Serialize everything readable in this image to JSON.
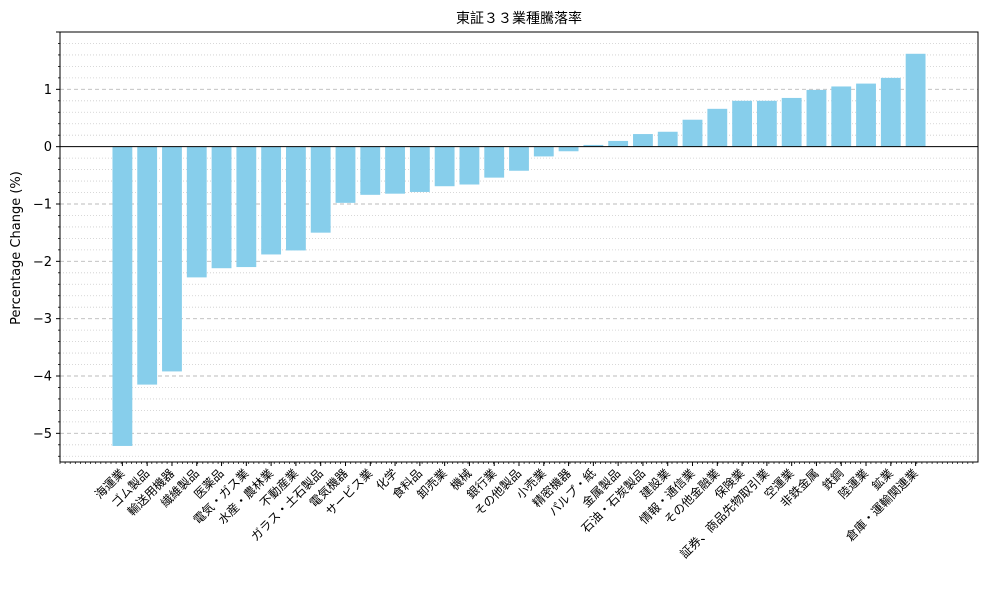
{
  "chart_data": {
    "type": "bar",
    "title": "東証３３業種騰落率",
    "xlabel": "",
    "ylabel": "Percentage Change (%)",
    "ylim": [
      -5.5,
      2.0
    ],
    "yticks": [
      "−5",
      "−4",
      "−3",
      "−2",
      "−1",
      "0",
      "1"
    ],
    "grid": "y-dashed-major-dotted-minor",
    "bar_color": "#87CEEB",
    "categories": [
      "海運業",
      "ゴム製品",
      "輸送用機器",
      "繊維製品",
      "医薬品",
      "電気・ガス業",
      "水産・農林業",
      "不動産業",
      "ガラス・土石製品",
      "電気機器",
      "サービス業",
      "化学",
      "食料品",
      "卸売業",
      "機械",
      "銀行業",
      "その他製品",
      "小売業",
      "精密機器",
      "パルプ・紙",
      "金属製品",
      "石油・石炭製品",
      "建設業",
      "情報・通信業",
      "その他金融業",
      "保険業",
      "証券、商品先物取引業",
      "空運業",
      "非鉄金属",
      "鉄鋼",
      "陸運業",
      "鉱業",
      "倉庫・運輸関連業"
    ],
    "values": [
      -5.22,
      -4.15,
      -3.92,
      -2.28,
      -2.12,
      -2.1,
      -1.88,
      -1.81,
      -1.5,
      -0.98,
      -0.84,
      -0.82,
      -0.79,
      -0.69,
      -0.66,
      -0.54,
      -0.42,
      -0.17,
      -0.08,
      0.03,
      0.1,
      0.22,
      0.26,
      0.47,
      0.66,
      0.8,
      0.8,
      0.85,
      0.99,
      1.05,
      1.1,
      1.2,
      1.62
    ]
  }
}
